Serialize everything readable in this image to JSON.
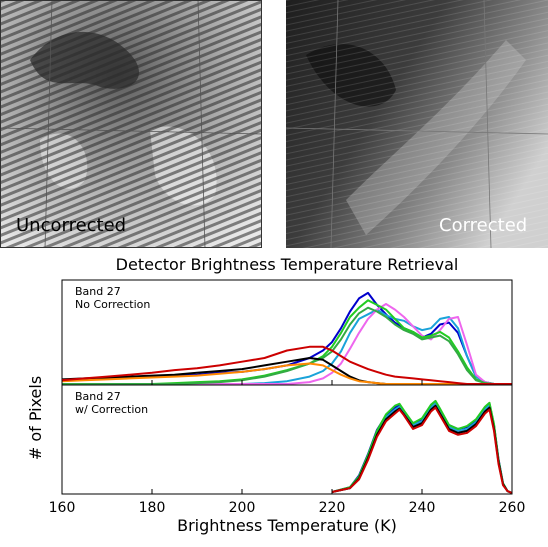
{
  "images": {
    "left_label": "Uncorrected",
    "right_label": "Corrected"
  },
  "chart_data": {
    "type": "line",
    "title": "Detector Brightness Temperature Retrieval",
    "xlabel": "Brightness Temperature (K)",
    "ylabel": "# of Pixels",
    "xlim": [
      160,
      260
    ],
    "xticks": [
      "160",
      "180",
      "200",
      "220",
      "240",
      "260"
    ],
    "grid": false,
    "legend": "none",
    "panels": [
      {
        "label_line1": "Band 27",
        "label_line2": "No Correction",
        "ylim": [
          0,
          100
        ],
        "x": [
          160,
          165,
          170,
          175,
          180,
          185,
          190,
          195,
          200,
          205,
          210,
          215,
          218,
          220,
          222,
          224,
          226,
          228,
          230,
          232,
          234,
          236,
          238,
          240,
          242,
          244,
          246,
          248,
          250,
          252,
          254,
          256,
          258,
          260
        ],
        "series": [
          {
            "color": "#0000cc",
            "values": [
              4,
              5,
              7,
              7,
              8,
              9,
              10,
              12,
              13,
              16,
              20,
              28,
              36,
              45,
              60,
              78,
              92,
              98,
              85,
              75,
              66,
              60,
              56,
              50,
              54,
              64,
              66,
              55,
              30,
              8,
              2,
              0,
              0,
              0
            ]
          },
          {
            "color": "#1aa3d9",
            "values": [
              0,
              0,
              0,
              0,
              0,
              0,
              0,
              0,
              0,
              1,
              3,
              8,
              14,
              22,
              35,
              55,
              70,
              75,
              80,
              74,
              70,
              68,
              62,
              58,
              60,
              70,
              72,
              60,
              30,
              8,
              2,
              0,
              0,
              0
            ]
          },
          {
            "color": "#ee66ee",
            "values": [
              0,
              0,
              0,
              0,
              0,
              0,
              0,
              0,
              0,
              0,
              0,
              2,
              6,
              12,
              22,
              38,
              55,
              70,
              80,
              86,
              80,
              72,
              62,
              52,
              48,
              58,
              70,
              72,
              42,
              10,
              2,
              0,
              0,
              0
            ]
          },
          {
            "color": "#22cc22",
            "values": [
              0,
              0,
              0,
              0,
              0,
              1,
              2,
              3,
              5,
              9,
              15,
              22,
              30,
              40,
              55,
              72,
              82,
              90,
              85,
              80,
              70,
              60,
              56,
              50,
              52,
              56,
              50,
              35,
              18,
              5,
              1,
              0,
              0,
              0
            ]
          },
          {
            "color": "#33aa44",
            "values": [
              0,
              0,
              0,
              0,
              0,
              0,
              1,
              2,
              4,
              8,
              14,
              22,
              28,
              35,
              48,
              64,
              76,
              82,
              78,
              72,
              64,
              58,
              54,
              48,
              50,
              52,
              46,
              32,
              15,
              4,
              1,
              0,
              0,
              0
            ]
          },
          {
            "color": "#000000",
            "values": [
              5,
              6,
              7,
              8,
              9,
              10,
              12,
              14,
              16,
              20,
              24,
              28,
              26,
              20,
              14,
              8,
              4,
              2,
              1,
              0,
              0,
              0,
              0,
              0,
              0,
              0,
              0,
              0,
              0,
              0,
              0,
              0,
              0,
              0
            ]
          },
          {
            "color": "#ff8800",
            "values": [
              3,
              4,
              5,
              6,
              7,
              8,
              9,
              11,
              13,
              16,
              20,
              22,
              20,
              15,
              10,
              6,
              3,
              2,
              1,
              0,
              0,
              0,
              0,
              0,
              0,
              0,
              0,
              0,
              0,
              0,
              0,
              0,
              0,
              0
            ]
          },
          {
            "color": "#cc0000",
            "values": [
              4,
              6,
              8,
              10,
              12,
              15,
              17,
              20,
              24,
              28,
              36,
              40,
              40,
              36,
              30,
              24,
              20,
              16,
              13,
              10,
              8,
              7,
              6,
              5,
              4,
              3,
              2,
              1,
              0,
              0,
              0,
              0,
              0,
              0
            ]
          }
        ]
      },
      {
        "label_line1": "Band 27",
        "label_line2": "w/ Correction",
        "ylim": [
          0,
          100
        ],
        "x": [
          220,
          224,
          226,
          228,
          230,
          232,
          234,
          235,
          236,
          238,
          240,
          242,
          243,
          244,
          246,
          248,
          250,
          252,
          254,
          255,
          256,
          257,
          258,
          259,
          260
        ],
        "series": [
          {
            "color": "#0000cc",
            "values": [
              1,
              6,
              18,
              40,
              65,
              80,
              88,
              90,
              84,
              72,
              76,
              90,
              94,
              86,
              70,
              66,
              68,
              75,
              88,
              92,
              70,
              35,
              10,
              2,
              0
            ]
          },
          {
            "color": "#1aa3d9",
            "values": [
              1,
              5,
              16,
              38,
              62,
              78,
              86,
              89,
              83,
              70,
              74,
              88,
              93,
              85,
              68,
              64,
              66,
              73,
              86,
              91,
              68,
              33,
              9,
              2,
              0
            ]
          },
          {
            "color": "#22cc22",
            "values": [
              1,
              6,
              17,
              39,
              64,
              81,
              90,
              92,
              85,
              72,
              77,
              91,
              95,
              87,
              70,
              66,
              69,
              76,
              89,
              93,
              71,
              34,
              10,
              2,
              0
            ]
          },
          {
            "color": "#000000",
            "values": [
              1,
              5,
              15,
              36,
              60,
              76,
              84,
              87,
              81,
              68,
              72,
              86,
              90,
              82,
              66,
              62,
              64,
              71,
              84,
              88,
              66,
              32,
              9,
              2,
              0
            ]
          },
          {
            "color": "#cc0000",
            "values": [
              1,
              5,
              14,
              34,
              58,
              74,
              82,
              86,
              80,
              66,
              70,
              84,
              88,
              80,
              64,
              60,
              62,
              69,
              82,
              86,
              64,
              30,
              8,
              2,
              0
            ]
          }
        ]
      }
    ]
  }
}
